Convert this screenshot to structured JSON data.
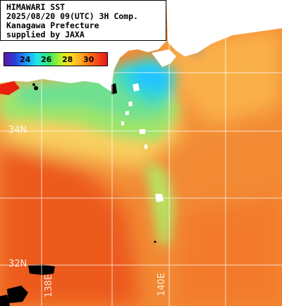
{
  "title_lines": [
    "HIMAWARI SST",
    "2025/08/20 09(UTC) 3H Comp.",
    "Kanagawa Prefecture",
    "supplied by JAXA"
  ],
  "colorbar": {
    "ticks": [
      "24",
      "26",
      "28",
      "30"
    ]
  },
  "grid_labels": {
    "lat_34": "34N",
    "lat_32": "32N",
    "lon_138": "138E",
    "lon_140": "140E"
  },
  "colors": {
    "land": "#ffffff",
    "cloud_mask": "#000000",
    "grid": "#ffffff",
    "warm_sea": "#f07a2a",
    "cool_sea": "#50e0a0",
    "coldest_sea": "#20c8ff"
  }
}
